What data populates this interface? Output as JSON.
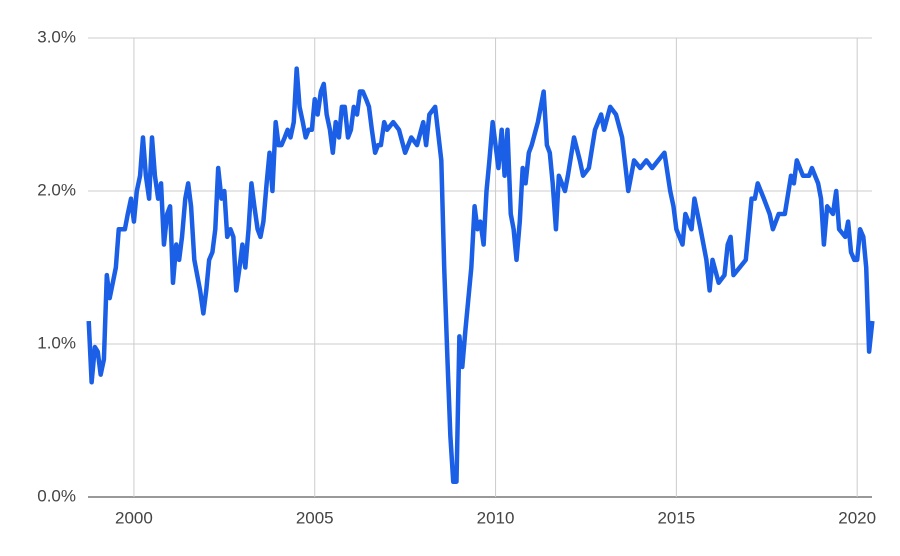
{
  "chart_data": {
    "type": "line",
    "x": [
      1998.75,
      1998.83,
      1998.92,
      1999.0,
      1999.08,
      1999.17,
      1999.25,
      1999.33,
      1999.5,
      1999.58,
      1999.75,
      1999.83,
      1999.92,
      2000.0,
      2000.08,
      2000.17,
      2000.25,
      2000.33,
      2000.42,
      2000.5,
      2000.58,
      2000.67,
      2000.75,
      2000.83,
      2000.92,
      2001.0,
      2001.08,
      2001.17,
      2001.25,
      2001.33,
      2001.42,
      2001.5,
      2001.58,
      2001.67,
      2001.75,
      2001.83,
      2001.92,
      2002.0,
      2002.08,
      2002.17,
      2002.25,
      2002.33,
      2002.42,
      2002.5,
      2002.58,
      2002.67,
      2002.75,
      2002.83,
      2002.92,
      2003.0,
      2003.08,
      2003.17,
      2003.25,
      2003.33,
      2003.42,
      2003.5,
      2003.58,
      2003.67,
      2003.75,
      2003.83,
      2003.92,
      2004.0,
      2004.08,
      2004.17,
      2004.25,
      2004.33,
      2004.42,
      2004.5,
      2004.58,
      2004.67,
      2004.75,
      2004.83,
      2004.92,
      2005.0,
      2005.08,
      2005.17,
      2005.25,
      2005.33,
      2005.42,
      2005.5,
      2005.58,
      2005.67,
      2005.75,
      2005.83,
      2005.92,
      2006.0,
      2006.08,
      2006.17,
      2006.25,
      2006.33,
      2006.42,
      2006.5,
      2006.58,
      2006.67,
      2006.75,
      2006.83,
      2006.92,
      2007.0,
      2007.17,
      2007.33,
      2007.5,
      2007.67,
      2007.83,
      2008.0,
      2008.08,
      2008.17,
      2008.33,
      2008.5,
      2008.58,
      2008.67,
      2008.75,
      2008.83,
      2008.92,
      2009.0,
      2009.08,
      2009.17,
      2009.25,
      2009.33,
      2009.42,
      2009.5,
      2009.58,
      2009.67,
      2009.75,
      2009.83,
      2009.92,
      2010.0,
      2010.08,
      2010.17,
      2010.25,
      2010.33,
      2010.42,
      2010.5,
      2010.58,
      2010.67,
      2010.75,
      2010.83,
      2010.92,
      2011.0,
      2011.17,
      2011.33,
      2011.42,
      2011.5,
      2011.58,
      2011.67,
      2011.75,
      2011.92,
      2012.0,
      2012.17,
      2012.33,
      2012.42,
      2012.58,
      2012.75,
      2012.92,
      2013.0,
      2013.17,
      2013.33,
      2013.5,
      2013.67,
      2013.83,
      2014.0,
      2014.17,
      2014.33,
      2014.5,
      2014.67,
      2014.83,
      2014.92,
      2015.0,
      2015.17,
      2015.25,
      2015.42,
      2015.5,
      2015.67,
      2015.83,
      2015.92,
      2016.0,
      2016.17,
      2016.33,
      2016.42,
      2016.5,
      2016.58,
      2016.75,
      2016.92,
      2017.0,
      2017.08,
      2017.17,
      2017.25,
      2017.42,
      2017.58,
      2017.67,
      2017.83,
      2018.0,
      2018.17,
      2018.25,
      2018.33,
      2018.5,
      2018.67,
      2018.75,
      2018.92,
      2019.0,
      2019.08,
      2019.17,
      2019.33,
      2019.42,
      2019.5,
      2019.67,
      2019.75,
      2019.83,
      2019.92,
      2020.0,
      2020.08,
      2020.17,
      2020.25,
      2020.33,
      2020.42
    ],
    "series": [
      {
        "color": "#1a5fe6",
        "values": [
          1.15,
          0.75,
          0.98,
          0.95,
          0.8,
          0.9,
          1.45,
          1.3,
          1.5,
          1.75,
          1.75,
          1.85,
          1.95,
          1.8,
          2.0,
          2.1,
          2.35,
          2.1,
          1.95,
          2.35,
          2.1,
          1.95,
          2.05,
          1.65,
          1.85,
          1.9,
          1.4,
          1.65,
          1.55,
          1.7,
          1.95,
          2.05,
          1.9,
          1.55,
          1.45,
          1.35,
          1.2,
          1.35,
          1.55,
          1.6,
          1.75,
          2.15,
          1.95,
          2.0,
          1.7,
          1.75,
          1.7,
          1.35,
          1.5,
          1.65,
          1.5,
          1.75,
          2.05,
          1.9,
          1.75,
          1.7,
          1.8,
          2.05,
          2.25,
          2.0,
          2.45,
          2.3,
          2.3,
          2.35,
          2.4,
          2.35,
          2.45,
          2.8,
          2.55,
          2.45,
          2.35,
          2.4,
          2.4,
          2.6,
          2.5,
          2.65,
          2.7,
          2.5,
          2.4,
          2.25,
          2.45,
          2.35,
          2.55,
          2.55,
          2.35,
          2.4,
          2.55,
          2.5,
          2.65,
          2.65,
          2.6,
          2.55,
          2.4,
          2.25,
          2.3,
          2.3,
          2.45,
          2.4,
          2.45,
          2.4,
          2.25,
          2.35,
          2.3,
          2.45,
          2.3,
          2.5,
          2.55,
          2.2,
          1.5,
          0.9,
          0.4,
          0.1,
          0.1,
          1.05,
          0.85,
          1.1,
          1.3,
          1.5,
          1.9,
          1.75,
          1.8,
          1.65,
          2.0,
          2.2,
          2.45,
          2.3,
          2.15,
          2.4,
          2.1,
          2.4,
          1.85,
          1.75,
          1.55,
          1.8,
          2.15,
          2.05,
          2.25,
          2.3,
          2.45,
          2.65,
          2.3,
          2.25,
          2.05,
          1.75,
          2.1,
          2.0,
          2.1,
          2.35,
          2.2,
          2.1,
          2.15,
          2.4,
          2.5,
          2.4,
          2.55,
          2.5,
          2.35,
          2.0,
          2.2,
          2.15,
          2.2,
          2.15,
          2.2,
          2.25,
          2.0,
          1.9,
          1.75,
          1.65,
          1.85,
          1.75,
          1.95,
          1.75,
          1.55,
          1.35,
          1.55,
          1.4,
          1.45,
          1.65,
          1.7,
          1.45,
          1.5,
          1.55,
          1.75,
          1.95,
          1.95,
          2.05,
          1.95,
          1.85,
          1.75,
          1.85,
          1.85,
          2.1,
          2.05,
          2.2,
          2.1,
          2.1,
          2.15,
          2.05,
          1.95,
          1.65,
          1.9,
          1.85,
          2.0,
          1.75,
          1.7,
          1.8,
          1.6,
          1.55,
          1.55,
          1.75,
          1.7,
          1.5,
          0.95,
          1.15
        ]
      }
    ],
    "xlim": [
      1998.73,
      2020.41
    ],
    "xticks": [
      2000,
      2005,
      2010,
      2015,
      2020
    ],
    "ylim": [
      0,
      3
    ],
    "yticks": [
      {
        "value": 0,
        "label": "0.0%"
      },
      {
        "value": 1,
        "label": "1.0%"
      },
      {
        "value": 2,
        "label": "2.0%"
      },
      {
        "value": 3,
        "label": "3.0%"
      }
    ],
    "grid": true
  }
}
